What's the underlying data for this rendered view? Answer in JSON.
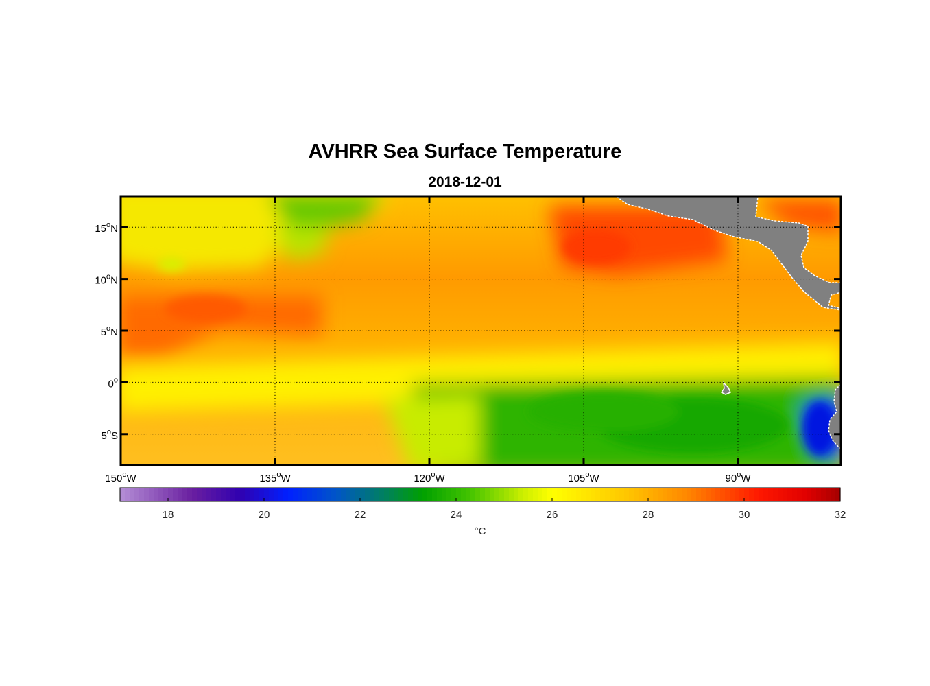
{
  "title": "AVHRR Sea Surface Temperature",
  "subtitle": "2018-12-01",
  "map": {
    "lon_range": [
      -150,
      -80
    ],
    "lat_range": [
      -8,
      18
    ],
    "lon_ticks": [
      {
        "value": -150,
        "num": "150",
        "hem": "W"
      },
      {
        "value": -135,
        "num": "135",
        "hem": "W"
      },
      {
        "value": -120,
        "num": "120",
        "hem": "W"
      },
      {
        "value": -105,
        "num": "105",
        "hem": "W"
      },
      {
        "value": -90,
        "num": "90",
        "hem": "W"
      }
    ],
    "lat_ticks": [
      {
        "value": 15,
        "num": "15",
        "hem": "N"
      },
      {
        "value": 10,
        "num": "10",
        "hem": "N"
      },
      {
        "value": 5,
        "num": "5",
        "hem": "N"
      },
      {
        "value": 0,
        "num": "0",
        "hem": ""
      },
      {
        "value": -5,
        "num": "5",
        "hem": "S"
      }
    ],
    "degree_symbol": "o",
    "grid": "dotted",
    "land_color": "#808080",
    "coast_color": "#ffffff"
  },
  "colorbar": {
    "min": 17,
    "max": 32,
    "ticks": [
      18,
      20,
      22,
      24,
      26,
      28,
      30,
      32
    ],
    "unit": "°C",
    "stops": [
      {
        "v": 17,
        "c": "#b48fd6"
      },
      {
        "v": 18.5,
        "c": "#6a1fa0"
      },
      {
        "v": 19.5,
        "c": "#3000b0"
      },
      {
        "v": 20.5,
        "c": "#0020ff"
      },
      {
        "v": 21.5,
        "c": "#0055c8"
      },
      {
        "v": 22.5,
        "c": "#008060"
      },
      {
        "v": 23.3,
        "c": "#00a000"
      },
      {
        "v": 24.3,
        "c": "#44c400"
      },
      {
        "v": 25.4,
        "c": "#ccef00"
      },
      {
        "v": 26,
        "c": "#ffff00"
      },
      {
        "v": 27.5,
        "c": "#ffc800"
      },
      {
        "v": 28.8,
        "c": "#ff8800"
      },
      {
        "v": 30.3,
        "c": "#ff1800"
      },
      {
        "v": 31.3,
        "c": "#e00000"
      },
      {
        "v": 32,
        "c": "#a50000"
      }
    ]
  }
}
